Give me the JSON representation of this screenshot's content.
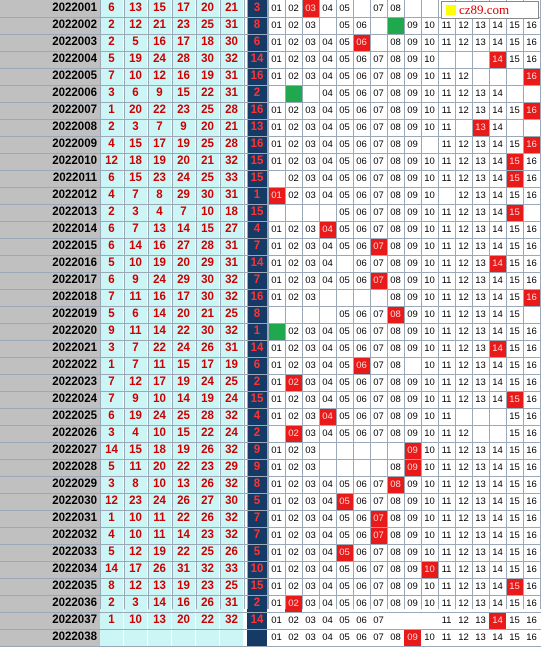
{
  "logo": {
    "text": "cz89.com",
    "square_color": "#ffff00"
  },
  "colors": {
    "period_bg": "#c0c0c0",
    "red_bg": "#ccf5f5",
    "red_text": "#cc0000",
    "blue_bg": "#163a66",
    "blue_text": "#ff3333",
    "hit_bg": "#e81a1a",
    "missing_mark": "#1fa84e"
  },
  "rows": [
    {
      "period": "2022001",
      "reds": [
        "6",
        "13",
        "15",
        "17",
        "20",
        "21"
      ],
      "blue": "3",
      "trend": [
        "01",
        "02",
        "03",
        "04",
        "05",
        "",
        "07",
        "08",
        "",
        "",
        "",
        "",
        "",
        "",
        "",
        ""
      ],
      "hit": 3,
      "green": 0
    },
    {
      "period": "2022002",
      "reds": [
        "2",
        "12",
        "21",
        "23",
        "25",
        "31"
      ],
      "blue": "8",
      "trend": [
        "01",
        "02",
        "03",
        "",
        "05",
        "06",
        "",
        "",
        "09",
        "10",
        "11",
        "12",
        "13",
        "14",
        "15",
        "16"
      ],
      "hit": 0,
      "green": 8
    },
    {
      "period": "2022003",
      "reds": [
        "2",
        "5",
        "16",
        "17",
        "18",
        "30"
      ],
      "blue": "6",
      "trend": [
        "01",
        "02",
        "03",
        "04",
        "05",
        "06",
        "",
        "08",
        "09",
        "10",
        "11",
        "12",
        "13",
        "14",
        "15",
        "16"
      ],
      "hit": 6,
      "green": 0
    },
    {
      "period": "2022004",
      "reds": [
        "5",
        "19",
        "24",
        "28",
        "30",
        "32"
      ],
      "blue": "14",
      "trend": [
        "01",
        "02",
        "03",
        "04",
        "05",
        "06",
        "07",
        "08",
        "09",
        "10",
        "",
        "",
        "",
        "14",
        "15",
        "16"
      ],
      "hit": 14,
      "green": 0
    },
    {
      "period": "2022005",
      "reds": [
        "7",
        "10",
        "12",
        "16",
        "19",
        "31"
      ],
      "blue": "16",
      "trend": [
        "01",
        "02",
        "03",
        "04",
        "05",
        "06",
        "07",
        "08",
        "09",
        "10",
        "11",
        "12",
        "",
        "",
        "",
        "16"
      ],
      "hit": 16,
      "green": 0
    },
    {
      "period": "2022006",
      "reds": [
        "3",
        "6",
        "9",
        "15",
        "22",
        "31"
      ],
      "blue": "2",
      "trend": [
        "",
        "",
        "",
        "04",
        "05",
        "06",
        "07",
        "08",
        "09",
        "10",
        "11",
        "12",
        "13",
        "14",
        "",
        ""
      ],
      "hit": 0,
      "green": 2
    },
    {
      "period": "2022007",
      "reds": [
        "1",
        "20",
        "22",
        "23",
        "25",
        "28"
      ],
      "blue": "16",
      "trend": [
        "01",
        "02",
        "03",
        "04",
        "05",
        "06",
        "07",
        "08",
        "09",
        "10",
        "11",
        "12",
        "13",
        "14",
        "15",
        "16"
      ],
      "hit": 16,
      "green": 0
    },
    {
      "period": "2022008",
      "reds": [
        "2",
        "3",
        "7",
        "9",
        "20",
        "21"
      ],
      "blue": "13",
      "trend": [
        "01",
        "02",
        "03",
        "04",
        "05",
        "06",
        "07",
        "08",
        "09",
        "10",
        "11",
        "",
        "13",
        "14",
        "",
        ""
      ],
      "hit": 13,
      "green": 0
    },
    {
      "period": "2022009",
      "reds": [
        "4",
        "15",
        "17",
        "19",
        "25",
        "28"
      ],
      "blue": "16",
      "trend": [
        "01",
        "02",
        "03",
        "04",
        "05",
        "06",
        "07",
        "08",
        "09",
        "",
        "11",
        "12",
        "13",
        "14",
        "15",
        "16"
      ],
      "hit": 16,
      "green": 0
    },
    {
      "period": "2022010",
      "reds": [
        "12",
        "18",
        "19",
        "20",
        "21",
        "32"
      ],
      "blue": "15",
      "trend": [
        "01",
        "02",
        "03",
        "04",
        "05",
        "06",
        "07",
        "08",
        "09",
        "10",
        "11",
        "12",
        "13",
        "14",
        "15",
        "16"
      ],
      "hit": 15,
      "green": 0
    },
    {
      "period": "2022011",
      "reds": [
        "6",
        "15",
        "23",
        "24",
        "25",
        "33"
      ],
      "blue": "15",
      "trend": [
        "",
        "02",
        "03",
        "04",
        "05",
        "06",
        "07",
        "08",
        "09",
        "10",
        "11",
        "12",
        "13",
        "14",
        "15",
        "16"
      ],
      "hit": 15,
      "green": 0
    },
    {
      "period": "2022012",
      "reds": [
        "4",
        "7",
        "8",
        "29",
        "30",
        "31"
      ],
      "blue": "1",
      "trend": [
        "01",
        "02",
        "03",
        "04",
        "05",
        "06",
        "07",
        "08",
        "09",
        "10",
        "",
        "12",
        "13",
        "14",
        "15",
        "16"
      ],
      "hit": 1,
      "green": 0
    },
    {
      "period": "2022013",
      "reds": [
        "2",
        "3",
        "4",
        "7",
        "10",
        "18"
      ],
      "blue": "15",
      "trend": [
        "",
        "",
        "",
        "",
        "05",
        "06",
        "07",
        "08",
        "09",
        "10",
        "11",
        "12",
        "13",
        "14",
        "15",
        ""
      ],
      "hit": 15,
      "green": 0
    },
    {
      "period": "2022014",
      "reds": [
        "6",
        "7",
        "13",
        "14",
        "15",
        "27"
      ],
      "blue": "4",
      "trend": [
        "01",
        "02",
        "03",
        "04",
        "05",
        "06",
        "07",
        "08",
        "09",
        "10",
        "11",
        "12",
        "13",
        "14",
        "15",
        "16"
      ],
      "hit": 4,
      "green": 0
    },
    {
      "period": "2022015",
      "reds": [
        "6",
        "14",
        "16",
        "27",
        "28",
        "31"
      ],
      "blue": "7",
      "trend": [
        "01",
        "02",
        "03",
        "04",
        "05",
        "06",
        "07",
        "08",
        "09",
        "10",
        "11",
        "12",
        "13",
        "14",
        "15",
        "16"
      ],
      "hit": 7,
      "green": 0
    },
    {
      "period": "2022016",
      "reds": [
        "5",
        "10",
        "19",
        "20",
        "29",
        "31"
      ],
      "blue": "14",
      "trend": [
        "01",
        "02",
        "03",
        "04",
        "",
        "06",
        "07",
        "08",
        "09",
        "10",
        "11",
        "12",
        "13",
        "14",
        "15",
        "16"
      ],
      "hit": 14,
      "green": 0
    },
    {
      "period": "2022017",
      "reds": [
        "6",
        "9",
        "24",
        "29",
        "30",
        "32"
      ],
      "blue": "7",
      "trend": [
        "01",
        "02",
        "03",
        "04",
        "05",
        "06",
        "07",
        "08",
        "09",
        "10",
        "11",
        "12",
        "13",
        "14",
        "15",
        "16"
      ],
      "hit": 7,
      "green": 0
    },
    {
      "period": "2022018",
      "reds": [
        "7",
        "11",
        "16",
        "17",
        "30",
        "32"
      ],
      "blue": "16",
      "trend": [
        "01",
        "02",
        "03",
        "",
        "",
        "",
        "",
        "08",
        "09",
        "10",
        "11",
        "12",
        "13",
        "14",
        "15",
        "16"
      ],
      "hit": 16,
      "green": 0
    },
    {
      "period": "2022019",
      "reds": [
        "5",
        "6",
        "14",
        "20",
        "21",
        "25"
      ],
      "blue": "8",
      "trend": [
        "",
        "",
        "",
        "",
        "05",
        "06",
        "07",
        "08",
        "09",
        "10",
        "11",
        "12",
        "13",
        "14",
        "15",
        ""
      ],
      "hit": 8,
      "green": 0
    },
    {
      "period": "2022020",
      "reds": [
        "9",
        "11",
        "14",
        "22",
        "30",
        "32"
      ],
      "blue": "1",
      "trend": [
        "",
        "02",
        "03",
        "04",
        "05",
        "06",
        "07",
        "08",
        "09",
        "10",
        "11",
        "12",
        "13",
        "14",
        "15",
        "16"
      ],
      "hit": 0,
      "green": 1
    },
    {
      "period": "2022021",
      "reds": [
        "3",
        "7",
        "22",
        "24",
        "26",
        "31"
      ],
      "blue": "14",
      "trend": [
        "01",
        "02",
        "03",
        "04",
        "05",
        "06",
        "07",
        "08",
        "09",
        "10",
        "11",
        "12",
        "13",
        "14",
        "15",
        "16"
      ],
      "hit": 14,
      "green": 0
    },
    {
      "period": "2022022",
      "reds": [
        "1",
        "7",
        "11",
        "15",
        "17",
        "19"
      ],
      "blue": "6",
      "trend": [
        "01",
        "02",
        "03",
        "04",
        "05",
        "06",
        "07",
        "08",
        "",
        "10",
        "11",
        "12",
        "13",
        "14",
        "15",
        "16"
      ],
      "hit": 6,
      "green": 0
    },
    {
      "period": "2022023",
      "reds": [
        "7",
        "12",
        "17",
        "19",
        "24",
        "25"
      ],
      "blue": "2",
      "trend": [
        "01",
        "02",
        "03",
        "04",
        "05",
        "06",
        "07",
        "08",
        "09",
        "10",
        "11",
        "12",
        "13",
        "14",
        "15",
        "16"
      ],
      "hit": 2,
      "green": 0
    },
    {
      "period": "2022024",
      "reds": [
        "7",
        "9",
        "10",
        "14",
        "19",
        "24"
      ],
      "blue": "15",
      "trend": [
        "01",
        "02",
        "03",
        "04",
        "05",
        "06",
        "07",
        "08",
        "09",
        "10",
        "11",
        "12",
        "13",
        "14",
        "15",
        "16"
      ],
      "hit": 15,
      "green": 0
    },
    {
      "period": "2022025",
      "reds": [
        "6",
        "19",
        "24",
        "25",
        "28",
        "32"
      ],
      "blue": "4",
      "trend": [
        "01",
        "02",
        "03",
        "04",
        "05",
        "06",
        "07",
        "08",
        "09",
        "10",
        "11",
        "",
        "",
        "",
        "15",
        "16"
      ],
      "hit": 4,
      "green": 0
    },
    {
      "period": "2022026",
      "reds": [
        "3",
        "4",
        "10",
        "15",
        "22",
        "24"
      ],
      "blue": "2",
      "trend": [
        "",
        "02",
        "03",
        "04",
        "05",
        "06",
        "07",
        "08",
        "09",
        "10",
        "11",
        "12",
        "",
        "",
        "15",
        "16"
      ],
      "hit": 2,
      "green": 0
    },
    {
      "period": "2022027",
      "reds": [
        "14",
        "15",
        "18",
        "19",
        "26",
        "32"
      ],
      "blue": "9",
      "trend": [
        "01",
        "02",
        "03",
        "",
        "",
        "",
        "",
        "",
        "09",
        "10",
        "11",
        "12",
        "13",
        "14",
        "15",
        "16"
      ],
      "hit": 9,
      "green": 0
    },
    {
      "period": "2022028",
      "reds": [
        "5",
        "11",
        "20",
        "22",
        "23",
        "29"
      ],
      "blue": "9",
      "trend": [
        "01",
        "02",
        "03",
        "",
        "",
        "",
        "",
        "08",
        "09",
        "10",
        "11",
        "12",
        "13",
        "14",
        "15",
        "16"
      ],
      "hit": 9,
      "green": 0
    },
    {
      "period": "2022029",
      "reds": [
        "3",
        "8",
        "10",
        "13",
        "26",
        "32"
      ],
      "blue": "8",
      "trend": [
        "01",
        "02",
        "03",
        "04",
        "05",
        "06",
        "07",
        "08",
        "09",
        "10",
        "11",
        "12",
        "13",
        "14",
        "15",
        "16"
      ],
      "hit": 8,
      "green": 0
    },
    {
      "period": "2022030",
      "reds": [
        "12",
        "23",
        "24",
        "26",
        "27",
        "30"
      ],
      "blue": "5",
      "trend": [
        "01",
        "02",
        "03",
        "04",
        "05",
        "06",
        "07",
        "08",
        "09",
        "10",
        "11",
        "12",
        "13",
        "14",
        "15",
        "16"
      ],
      "hit": 5,
      "green": 0
    },
    {
      "period": "2022031",
      "reds": [
        "1",
        "10",
        "11",
        "22",
        "26",
        "32"
      ],
      "blue": "7",
      "trend": [
        "01",
        "02",
        "03",
        "04",
        "05",
        "06",
        "07",
        "08",
        "09",
        "10",
        "11",
        "12",
        "13",
        "14",
        "15",
        "16"
      ],
      "hit": 7,
      "green": 0
    },
    {
      "period": "2022032",
      "reds": [
        "4",
        "10",
        "11",
        "14",
        "23",
        "32"
      ],
      "blue": "7",
      "trend": [
        "01",
        "02",
        "03",
        "04",
        "05",
        "06",
        "07",
        "08",
        "09",
        "10",
        "11",
        "12",
        "13",
        "14",
        "15",
        "16"
      ],
      "hit": 7,
      "green": 0
    },
    {
      "period": "2022033",
      "reds": [
        "5",
        "12",
        "19",
        "22",
        "25",
        "26"
      ],
      "blue": "5",
      "trend": [
        "01",
        "02",
        "03",
        "04",
        "05",
        "06",
        "07",
        "08",
        "09",
        "10",
        "11",
        "12",
        "13",
        "14",
        "15",
        "16"
      ],
      "hit": 5,
      "green": 0
    },
    {
      "period": "2022034",
      "reds": [
        "14",
        "17",
        "26",
        "31",
        "32",
        "33"
      ],
      "blue": "10",
      "trend": [
        "01",
        "02",
        "03",
        "04",
        "05",
        "06",
        "07",
        "08",
        "09",
        "10",
        "11",
        "12",
        "13",
        "14",
        "15",
        "16"
      ],
      "hit": 10,
      "green": 0
    },
    {
      "period": "2022035",
      "reds": [
        "8",
        "12",
        "13",
        "19",
        "23",
        "25"
      ],
      "blue": "15",
      "trend": [
        "01",
        "02",
        "03",
        "04",
        "05",
        "06",
        "07",
        "08",
        "09",
        "10",
        "11",
        "12",
        "13",
        "14",
        "15",
        "16"
      ],
      "hit": 15,
      "green": 0
    },
    {
      "period": "2022036",
      "reds": [
        "2",
        "3",
        "14",
        "16",
        "26",
        "31"
      ],
      "blue": "2",
      "trend": [
        "01",
        "02",
        "03",
        "04",
        "05",
        "06",
        "07",
        "08",
        "09",
        "10",
        "11",
        "12",
        "13",
        "14",
        "15",
        "16"
      ],
      "hit": 2,
      "green": 0
    },
    {
      "period": "2022037",
      "reds": [
        "1",
        "10",
        "13",
        "20",
        "22",
        "32"
      ],
      "blue": "14",
      "trend": [
        "01",
        "02",
        "03",
        "04",
        "05",
        "06",
        "07",
        "",
        "",
        "",
        "11",
        "12",
        "13",
        "14",
        "15",
        "16"
      ],
      "hit": 14,
      "green": 0
    },
    {
      "period": "2022038",
      "reds": [
        "",
        "",
        "",
        "",
        "",
        ""
      ],
      "blue": "",
      "trend": [
        "01",
        "02",
        "03",
        "04",
        "05",
        "06",
        "07",
        "08",
        "09",
        "10",
        "11",
        "12",
        "13",
        "14",
        "15",
        "16"
      ],
      "hit": 9,
      "green": 0
    }
  ]
}
